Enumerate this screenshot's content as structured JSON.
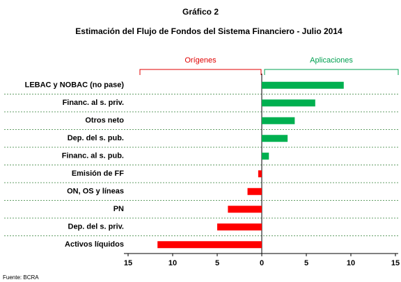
{
  "chart_data": {
    "type": "hbar",
    "title": "Gráfico 2",
    "subtitle": "Estimación del Flujo de Fondos del Sistema Financiero - Julio 2014",
    "left_group_label": "Orígenes",
    "right_group_label": "Aplicaciones",
    "categories": [
      "LEBAC y NOBAC (no pase)",
      "Financ. al s. priv.",
      "Otros neto",
      "Dep. del s. pub.",
      "Financ. al s. pub.",
      "Emisión de FF",
      "ON, OS y líneas",
      "PN",
      "Dep. del s. priv.",
      "Activos líquidos"
    ],
    "values": [
      9.2,
      6.0,
      3.7,
      2.9,
      0.8,
      -0.4,
      -1.6,
      -3.8,
      -5.0,
      -11.7
    ],
    "positive_color": "#00b050",
    "negative_color": "#ff0000",
    "xlim": [
      -15,
      15
    ],
    "xticks": [
      {
        "value": -15,
        "label": "15"
      },
      {
        "value": -10,
        "label": "10"
      },
      {
        "value": -5,
        "label": "5"
      },
      0,
      5,
      10,
      15
    ],
    "source": "Fuente: BCRA"
  }
}
